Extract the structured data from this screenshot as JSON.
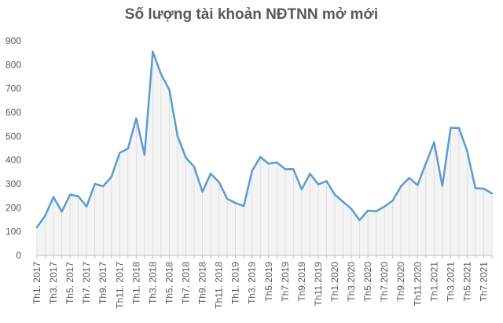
{
  "chart_data": {
    "type": "area",
    "title": "Số lượng tài khoản NĐTNN mở mới",
    "xlabel": "",
    "ylabel": "",
    "ylim": [
      0,
      900
    ],
    "yticks": [
      "0",
      "100",
      "200",
      "300",
      "400",
      "500",
      "600",
      "700",
      "800",
      "900"
    ],
    "grid": false,
    "legend": "none",
    "line_color": "#5b9bd5",
    "fill_color": "#d9d9d9",
    "categories": [
      "Th1. 2017",
      "Th2. 2017",
      "Th3. 2017",
      "Th4. 2017",
      "Th5. 2017",
      "Th6. 2017",
      "Th7. 2017",
      "Th8. 2017",
      "Th9. 2017",
      "Th10. 2017",
      "Th11. 2017",
      "Th12. 2017",
      "Th1. 2018",
      "Th2. 2018",
      "Th3. 2018",
      "Th4. 2018",
      "Th5. 2018",
      "Th6. 2018",
      "Th7. 2018",
      "Th8. 2018",
      "Th9. 2018",
      "Th10. 2018",
      "Th11. 2018",
      "Th12. 2018",
      "Th1. 2019",
      "Th2. 2019",
      "Th3. 2019",
      "Th4. 2019",
      "Th5.2019",
      "Th6.2019",
      "Th7.2019",
      "Th8.2019",
      "Th9.2019",
      "Th10.2019",
      "Th11.2019",
      "Th12.2019",
      "Th1.2020",
      "Th2.2020",
      "Th3.2020",
      "Th4.2020",
      "Th5.2020",
      "Th6.2020",
      "Th7.2020",
      "Th8.2020",
      "Th9.2020",
      "Th10.2020",
      "Th11.2020",
      "Th12.2020",
      "Th1.2021",
      "Th2.2021",
      "Th3.2021",
      "Th4.2021",
      "Th5.2021",
      "Th6.2021",
      "Th7.2021",
      "Th8.2021"
    ],
    "shown_tick_labels": [
      "Th1. 2017",
      "Th3. 2017",
      "Th5. 2017",
      "Th7. 2017",
      "Th9. 2017",
      "Th11. 2017",
      "Th1. 2018",
      "Th3. 2018",
      "Th5. 2018",
      "Th7. 2018",
      "Th9. 2018",
      "Th11. 2018",
      "Th1. 2019",
      "Th3. 2019",
      "Th5.2019",
      "Th7.2019",
      "Th9.2019",
      "Th11.2019",
      "Th1.2020",
      "Th3.2020",
      "Th5.2020",
      "Th7.2020",
      "Th9.2020",
      "Th11.2020",
      "Th1.2021",
      "Th3.2021",
      "Th5.2021",
      "Th7.2021"
    ],
    "values": [
      118,
      167,
      245,
      183,
      255,
      248,
      205,
      300,
      290,
      330,
      430,
      448,
      575,
      422,
      855,
      760,
      695,
      500,
      410,
      372,
      267,
      343,
      308,
      237,
      220,
      207,
      355,
      413,
      385,
      390,
      362,
      362,
      277,
      343,
      298,
      312,
      255,
      225,
      195,
      148,
      188,
      185,
      205,
      230,
      290,
      325,
      295,
      385,
      475,
      292,
      535,
      535,
      438,
      282,
      280,
      260
    ]
  }
}
